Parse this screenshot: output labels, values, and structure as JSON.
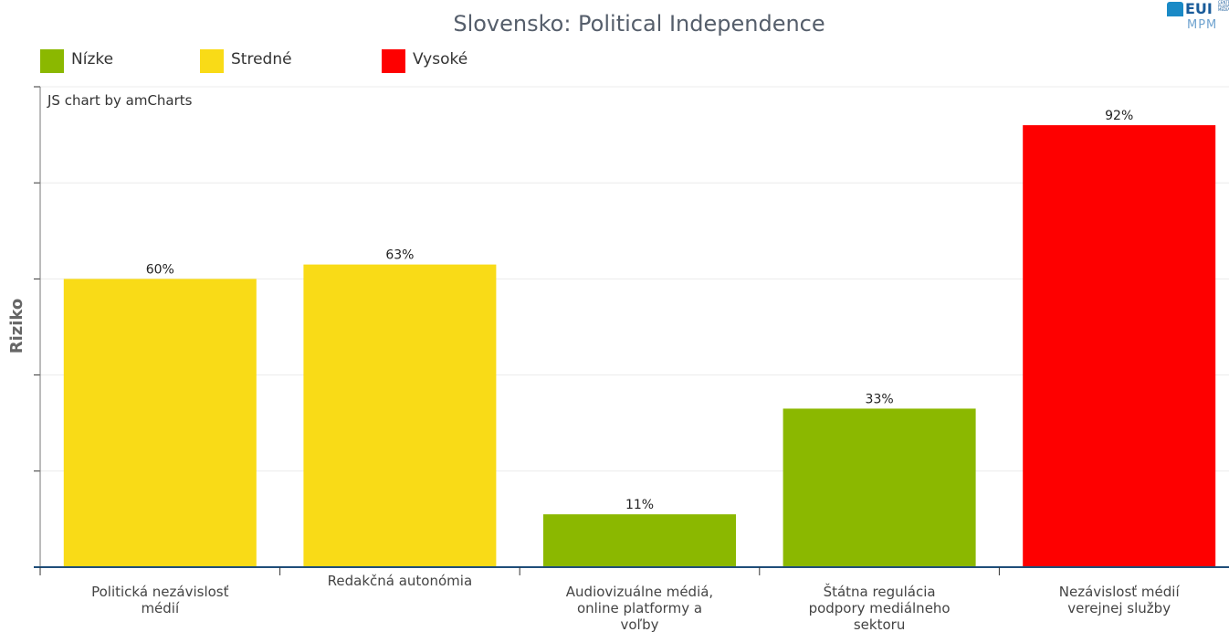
{
  "header": {
    "title": "Slovensko: Political Independence",
    "logo_text": "EUI",
    "logo_subtext": "MPM 2",
    "logo_small": "CENTRE PLURAL MEDIA"
  },
  "legend": [
    {
      "label": "Nízke",
      "color": "#8bb800"
    },
    {
      "label": "Stredné",
      "color": "#f9db17"
    },
    {
      "label": "Vysoké",
      "color": "#fe0000"
    }
  ],
  "credit": "JS chart by amCharts",
  "chart_data": {
    "type": "bar",
    "title": "Slovensko: Political Independence",
    "xlabel": "",
    "ylabel": "Riziko",
    "ylim": [
      0,
      100
    ],
    "grid": true,
    "legend_position": "top-left",
    "categories": [
      [
        "Politická nezávislosť",
        "médií"
      ],
      [
        "Redakčná autonómia"
      ],
      [
        "Audiovizuálne médiá,",
        "online platformy a",
        "voľby"
      ],
      [
        "Štátna regulácia",
        "podpory mediálneho",
        "sektoru"
      ],
      [
        "Nezávislosť médií",
        "verejnej služby"
      ]
    ],
    "values": [
      60,
      63,
      11,
      33,
      92
    ],
    "value_labels": [
      "60%",
      "63%",
      "11%",
      "33%",
      "92%"
    ],
    "risk_levels": [
      "Stredné",
      "Stredné",
      "Nízke",
      "Nízke",
      "Vysoké"
    ],
    "colors": [
      "#f9db17",
      "#f9db17",
      "#8bb800",
      "#8bb800",
      "#fe0000"
    ]
  }
}
